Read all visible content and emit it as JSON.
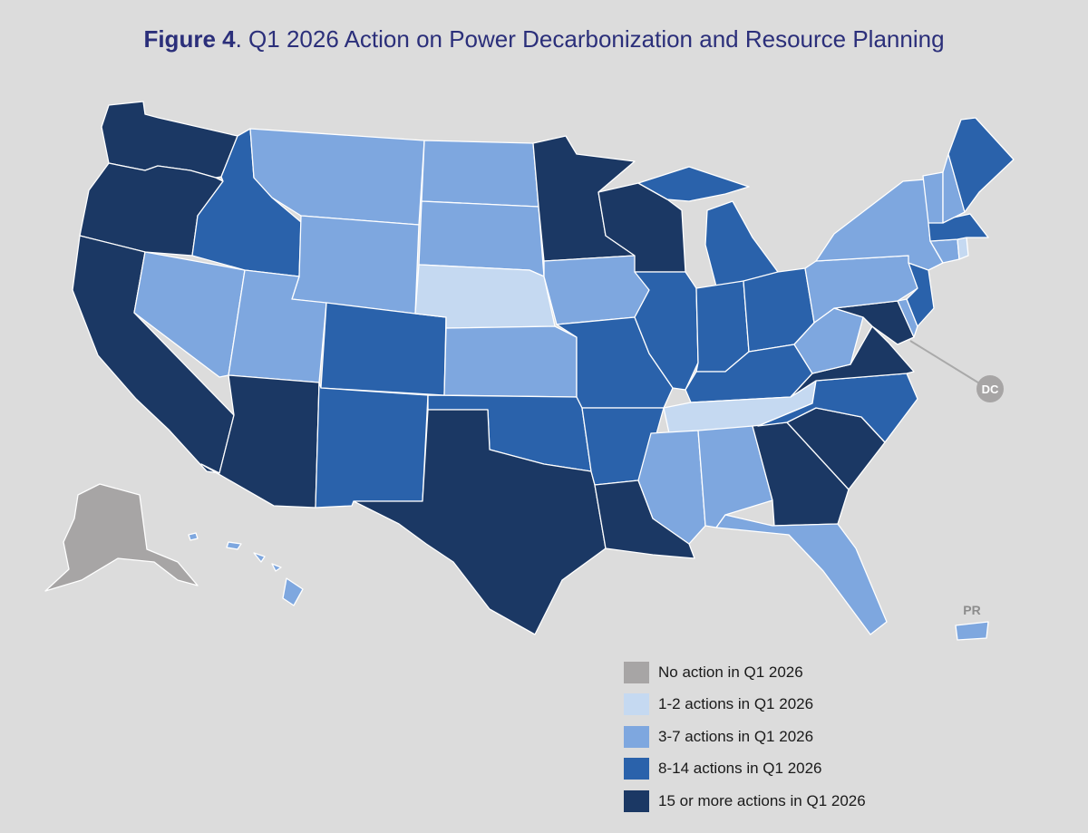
{
  "title": {
    "figure": "Figure 4",
    "text": ". Q1 2026 Action on Power Decarbonization and Resource Planning"
  },
  "colors": {
    "none": "#a7a5a5",
    "c1": "#c5d9f1",
    "c2": "#7ea7df",
    "c3": "#2a62ab",
    "c4": "#1b3864"
  },
  "legend": [
    {
      "key": "none",
      "label": "No action in Q1 2026"
    },
    {
      "key": "c1",
      "label": "1-2 actions in Q1 2026"
    },
    {
      "key": "c2",
      "label": "3-7 actions in Q1 2026"
    },
    {
      "key": "c3",
      "label": "8-14 actions in Q1 2026"
    },
    {
      "key": "c4",
      "label": "15 or more actions in Q1 2026"
    }
  ],
  "labels": {
    "dc": "DC",
    "pr": "PR"
  },
  "states": [
    {
      "id": "WA",
      "category": "c4"
    },
    {
      "id": "OR",
      "category": "c4"
    },
    {
      "id": "CA",
      "category": "c4"
    },
    {
      "id": "NV",
      "category": "c2"
    },
    {
      "id": "ID",
      "category": "c3"
    },
    {
      "id": "MT",
      "category": "c2"
    },
    {
      "id": "WY",
      "category": "c2"
    },
    {
      "id": "UT",
      "category": "c2"
    },
    {
      "id": "AZ",
      "category": "c4"
    },
    {
      "id": "CO",
      "category": "c3"
    },
    {
      "id": "NM",
      "category": "c3"
    },
    {
      "id": "ND",
      "category": "c2"
    },
    {
      "id": "SD",
      "category": "c2"
    },
    {
      "id": "NE",
      "category": "c1"
    },
    {
      "id": "KS",
      "category": "c2"
    },
    {
      "id": "OK",
      "category": "c3"
    },
    {
      "id": "TX",
      "category": "c4"
    },
    {
      "id": "MN",
      "category": "c4"
    },
    {
      "id": "IA",
      "category": "c2"
    },
    {
      "id": "MO",
      "category": "c3"
    },
    {
      "id": "AR",
      "category": "c3"
    },
    {
      "id": "LA",
      "category": "c4"
    },
    {
      "id": "WI",
      "category": "c4"
    },
    {
      "id": "IL",
      "category": "c3"
    },
    {
      "id": "MI",
      "category": "c3"
    },
    {
      "id": "IN",
      "category": "c3"
    },
    {
      "id": "OH",
      "category": "c3"
    },
    {
      "id": "KY",
      "category": "c3"
    },
    {
      "id": "TN",
      "category": "c1"
    },
    {
      "id": "MS",
      "category": "c2"
    },
    {
      "id": "AL",
      "category": "c2"
    },
    {
      "id": "GA",
      "category": "c4"
    },
    {
      "id": "FL",
      "category": "c2"
    },
    {
      "id": "SC",
      "category": "c4"
    },
    {
      "id": "NC",
      "category": "c3"
    },
    {
      "id": "VA",
      "category": "c4"
    },
    {
      "id": "WV",
      "category": "c2"
    },
    {
      "id": "MD",
      "category": "c4"
    },
    {
      "id": "DE",
      "category": "c2"
    },
    {
      "id": "PA",
      "category": "c2"
    },
    {
      "id": "NJ",
      "category": "c3"
    },
    {
      "id": "NY",
      "category": "c2"
    },
    {
      "id": "CT",
      "category": "c2"
    },
    {
      "id": "RI",
      "category": "c1"
    },
    {
      "id": "MA",
      "category": "c3"
    },
    {
      "id": "VT",
      "category": "c2"
    },
    {
      "id": "NH",
      "category": "c2"
    },
    {
      "id": "ME",
      "category": "c3"
    },
    {
      "id": "AK",
      "category": "none"
    },
    {
      "id": "HI",
      "category": "c2"
    },
    {
      "id": "PR",
      "category": "c2"
    },
    {
      "id": "DC",
      "category": "none"
    }
  ]
}
